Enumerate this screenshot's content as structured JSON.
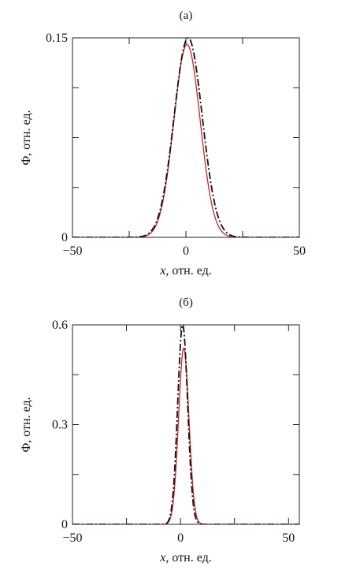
{
  "chart_data": [
    {
      "type": "line",
      "panel_label": "(а)",
      "xlabel_italic": "x",
      "xlabel_rest": ", отн. ед.",
      "ylabel": "Φ, отн. ед.",
      "xlim": [
        -50,
        50
      ],
      "ylim": [
        0,
        0.15
      ],
      "xticks": [
        -50,
        0,
        50
      ],
      "xtick_labels": [
        "−50",
        "0",
        "50"
      ],
      "yticks": [
        0,
        0.15
      ],
      "ytick_labels": [
        "0",
        "0.15"
      ],
      "minor_yticks": [
        0.0375,
        0.075,
        0.1125
      ],
      "minor_xticks": [
        -25,
        25
      ],
      "grid": false,
      "series": [
        {
          "style": "solid",
          "color": "#cc2222",
          "shape": "gaussian",
          "amplitude": 0.145,
          "center": 0.5,
          "width": 5.8
        },
        {
          "style": "dashdot",
          "color": "#111111",
          "shape": "gaussian",
          "amplitude": 0.15,
          "center": 1.0,
          "width": 6.2
        }
      ]
    },
    {
      "type": "line",
      "panel_label": "(б)",
      "xlabel_italic": "x",
      "xlabel_rest": ", отн. ед.",
      "ylabel": "Φ, отн. ед.",
      "xlim": [
        -50,
        55
      ],
      "ylim": [
        0,
        0.6
      ],
      "xticks": [
        -50,
        0,
        50
      ],
      "xtick_labels": [
        "−50",
        "0",
        "50"
      ],
      "yticks": [
        0,
        0.3,
        0.6
      ],
      "ytick_labels": [
        "0",
        "0.3",
        "0.6"
      ],
      "minor_yticks": [
        0.15,
        0.45
      ],
      "minor_xticks": [
        -25,
        25
      ],
      "grid": false,
      "series": [
        {
          "style": "solid",
          "color": "#cc2222",
          "shape": "gaussian",
          "amplitude": 0.53,
          "center": 1.5,
          "width": 2.4
        },
        {
          "style": "dashdot",
          "color": "#111111",
          "shape": "gaussian",
          "amplitude": 0.6,
          "center": 1.0,
          "width": 2.3
        }
      ]
    }
  ]
}
